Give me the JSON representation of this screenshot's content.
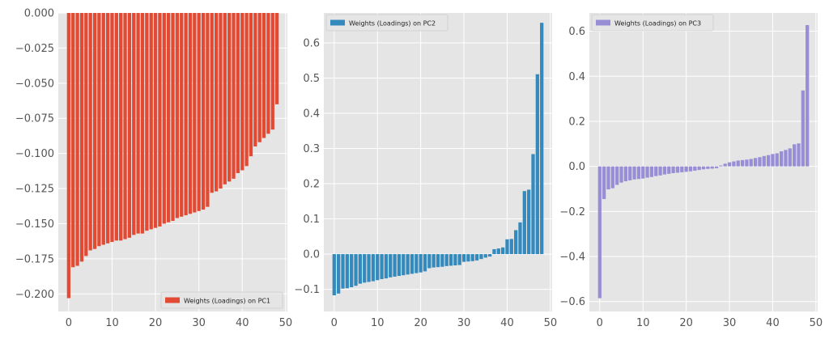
{
  "chart_data": [
    {
      "type": "bar",
      "color": "#e24a33",
      "legend": {
        "label": "Weights (Loadings) on PC1",
        "position": "lower-right"
      },
      "xlim": [
        -2.4,
        50.4
      ],
      "ylim": [
        -0.2125,
        0.0
      ],
      "xticks": [
        0,
        10,
        20,
        30,
        40,
        50
      ],
      "xtick_labels": [
        "0",
        "10",
        "20",
        "30",
        "40",
        "50"
      ],
      "yticks": [
        0.0,
        -0.025,
        -0.05,
        -0.075,
        -0.1,
        -0.125,
        -0.15,
        -0.175,
        -0.2
      ],
      "ytick_labels": [
        "0.000",
        "−0.025",
        "−0.050",
        "−0.075",
        "−0.100",
        "−0.125",
        "−0.150",
        "−0.175",
        "−0.200"
      ],
      "grid": true,
      "x": [
        0,
        1,
        2,
        3,
        4,
        5,
        6,
        7,
        8,
        9,
        10,
        11,
        12,
        13,
        14,
        15,
        16,
        17,
        18,
        19,
        20,
        21,
        22,
        23,
        24,
        25,
        26,
        27,
        28,
        29,
        30,
        31,
        32,
        33,
        34,
        35,
        36,
        37,
        38,
        39,
        40,
        41,
        42,
        43,
        44,
        45,
        46,
        47,
        48
      ],
      "values": [
        -0.203,
        -0.181,
        -0.18,
        -0.177,
        -0.173,
        -0.169,
        -0.168,
        -0.166,
        -0.165,
        -0.164,
        -0.163,
        -0.162,
        -0.162,
        -0.161,
        -0.16,
        -0.158,
        -0.157,
        -0.157,
        -0.155,
        -0.154,
        -0.153,
        -0.152,
        -0.15,
        -0.149,
        -0.148,
        -0.146,
        -0.145,
        -0.144,
        -0.143,
        -0.142,
        -0.141,
        -0.14,
        -0.138,
        -0.128,
        -0.127,
        -0.125,
        -0.122,
        -0.12,
        -0.118,
        -0.114,
        -0.112,
        -0.109,
        -0.102,
        -0.095,
        -0.092,
        -0.089,
        -0.086,
        -0.083,
        -0.065
      ]
    },
    {
      "type": "bar",
      "color": "#348abd",
      "legend": {
        "label": "Weights (Loadings) on PC2",
        "position": "upper-left"
      },
      "xlim": [
        -2.4,
        50.4
      ],
      "ylim": [
        -0.163,
        0.685
      ],
      "xticks": [
        0,
        10,
        20,
        30,
        40,
        50
      ],
      "xtick_labels": [
        "0",
        "10",
        "20",
        "30",
        "40",
        "50"
      ],
      "yticks": [
        -0.1,
        0.0,
        0.1,
        0.2,
        0.3,
        0.4,
        0.5,
        0.6
      ],
      "ytick_labels": [
        "−0.1",
        "0.0",
        "0.1",
        "0.2",
        "0.3",
        "0.4",
        "0.5",
        "0.6"
      ],
      "grid": true,
      "x": [
        0,
        1,
        2,
        3,
        4,
        5,
        6,
        7,
        8,
        9,
        10,
        11,
        12,
        13,
        14,
        15,
        16,
        17,
        18,
        19,
        20,
        21,
        22,
        23,
        24,
        25,
        26,
        27,
        28,
        29,
        30,
        31,
        32,
        33,
        34,
        35,
        36,
        37,
        38,
        39,
        40,
        41,
        42,
        43,
        44,
        45,
        46,
        47,
        48
      ],
      "values": [
        -0.117,
        -0.112,
        -0.098,
        -0.097,
        -0.094,
        -0.09,
        -0.084,
        -0.081,
        -0.079,
        -0.077,
        -0.074,
        -0.071,
        -0.069,
        -0.066,
        -0.064,
        -0.062,
        -0.06,
        -0.058,
        -0.056,
        -0.054,
        -0.052,
        -0.049,
        -0.04,
        -0.038,
        -0.037,
        -0.036,
        -0.034,
        -0.033,
        -0.032,
        -0.031,
        -0.022,
        -0.021,
        -0.02,
        -0.018,
        -0.014,
        -0.01,
        -0.007,
        0.014,
        0.016,
        0.019,
        0.042,
        0.043,
        0.068,
        0.09,
        0.179,
        0.183,
        0.284,
        0.511,
        0.657
      ]
    },
    {
      "type": "bar",
      "color": "#988ed5",
      "legend": {
        "label": "Weights (Loadings) on PC3",
        "position": "upper-left"
      },
      "xlim": [
        -2.4,
        50.4
      ],
      "ylim": [
        -0.644,
        0.681
      ],
      "xticks": [
        0,
        10,
        20,
        30,
        40,
        50
      ],
      "xtick_labels": [
        "0",
        "10",
        "20",
        "30",
        "40",
        "50"
      ],
      "yticks": [
        -0.6,
        -0.4,
        -0.2,
        0.0,
        0.2,
        0.4,
        0.6
      ],
      "ytick_labels": [
        "−0.6",
        "−0.4",
        "−0.2",
        "0.0",
        "0.2",
        "0.4",
        "0.6"
      ],
      "grid": true,
      "x": [
        0,
        1,
        2,
        3,
        4,
        5,
        6,
        7,
        8,
        9,
        10,
        11,
        12,
        13,
        14,
        15,
        16,
        17,
        18,
        19,
        20,
        21,
        22,
        23,
        24,
        25,
        26,
        27,
        28,
        29,
        30,
        31,
        32,
        33,
        34,
        35,
        36,
        37,
        38,
        39,
        40,
        41,
        42,
        43,
        44,
        45,
        46,
        47,
        48
      ],
      "values": [
        -0.585,
        -0.145,
        -0.102,
        -0.097,
        -0.082,
        -0.072,
        -0.066,
        -0.062,
        -0.058,
        -0.056,
        -0.054,
        -0.05,
        -0.047,
        -0.043,
        -0.04,
        -0.036,
        -0.033,
        -0.03,
        -0.028,
        -0.026,
        -0.024,
        -0.022,
        -0.019,
        -0.016,
        -0.013,
        -0.011,
        -0.01,
        -0.008,
        0.004,
        0.012,
        0.018,
        0.022,
        0.026,
        0.028,
        0.03,
        0.033,
        0.037,
        0.041,
        0.046,
        0.05,
        0.055,
        0.058,
        0.067,
        0.073,
        0.08,
        0.098,
        0.102,
        0.337,
        0.627
      ]
    }
  ]
}
